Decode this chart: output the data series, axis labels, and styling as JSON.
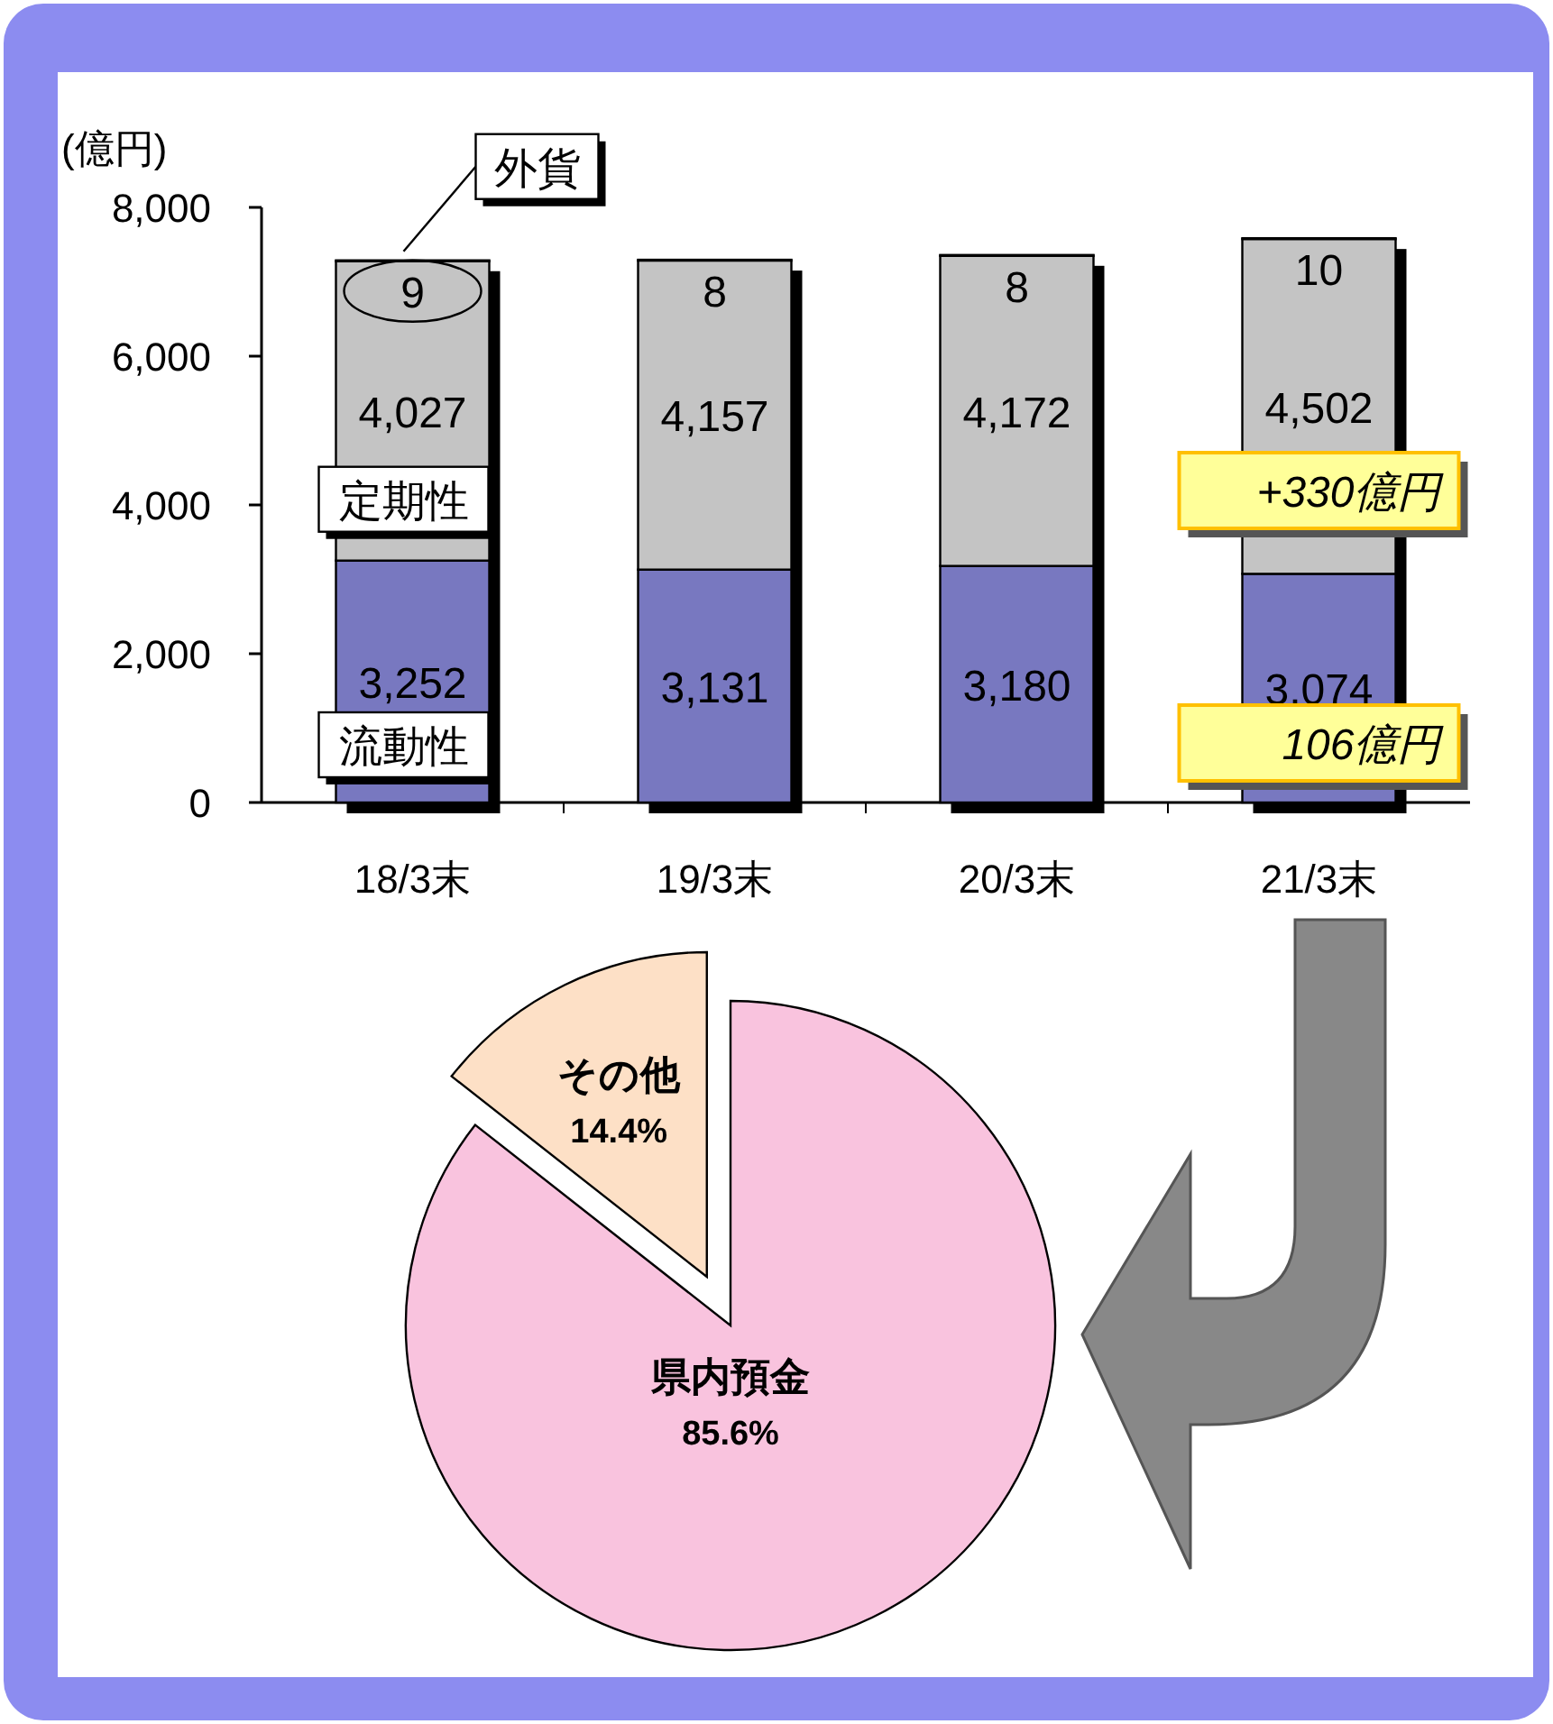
{
  "chart_data": [
    {
      "type": "bar",
      "stacked": true,
      "ylabel": "(億円)",
      "categories": [
        "18/3末",
        "19/3末",
        "20/3末",
        "21/3末"
      ],
      "ylim": [
        0,
        8000
      ],
      "yticks": [
        {
          "value": 0,
          "label": "0"
        },
        {
          "value": 2000,
          "label": "2,000"
        },
        {
          "value": 4000,
          "label": "4,000"
        },
        {
          "value": 6000,
          "label": "6,000"
        },
        {
          "value": 8000,
          "label": "8,000"
        }
      ],
      "series": [
        {
          "name": "流動性",
          "color": "#7878c0",
          "values": [
            3252,
            3131,
            3180,
            3074
          ],
          "value_labels": [
            "3,252",
            "3,131",
            "3,180",
            "3,074"
          ]
        },
        {
          "name": "定期性",
          "color": "#c4c4c4",
          "values": [
            4027,
            4157,
            4172,
            4502
          ],
          "value_labels": [
            "4,027",
            "4,157",
            "4,172",
            "4,502"
          ]
        },
        {
          "name": "外貨",
          "color": "#e6e6e6",
          "values": [
            9,
            8,
            8,
            10
          ],
          "value_labels": [
            "9",
            "8",
            "8",
            "10"
          ]
        }
      ],
      "annotations": [
        "+330億円",
        "106億円"
      ]
    },
    {
      "type": "pie",
      "categories": [
        "県内預金",
        "その他"
      ],
      "values": [
        85.6,
        14.4
      ],
      "value_labels": [
        "85.6%",
        "14.4%"
      ],
      "colors": [
        "#f9c3de",
        "#fde0c6"
      ]
    }
  ]
}
